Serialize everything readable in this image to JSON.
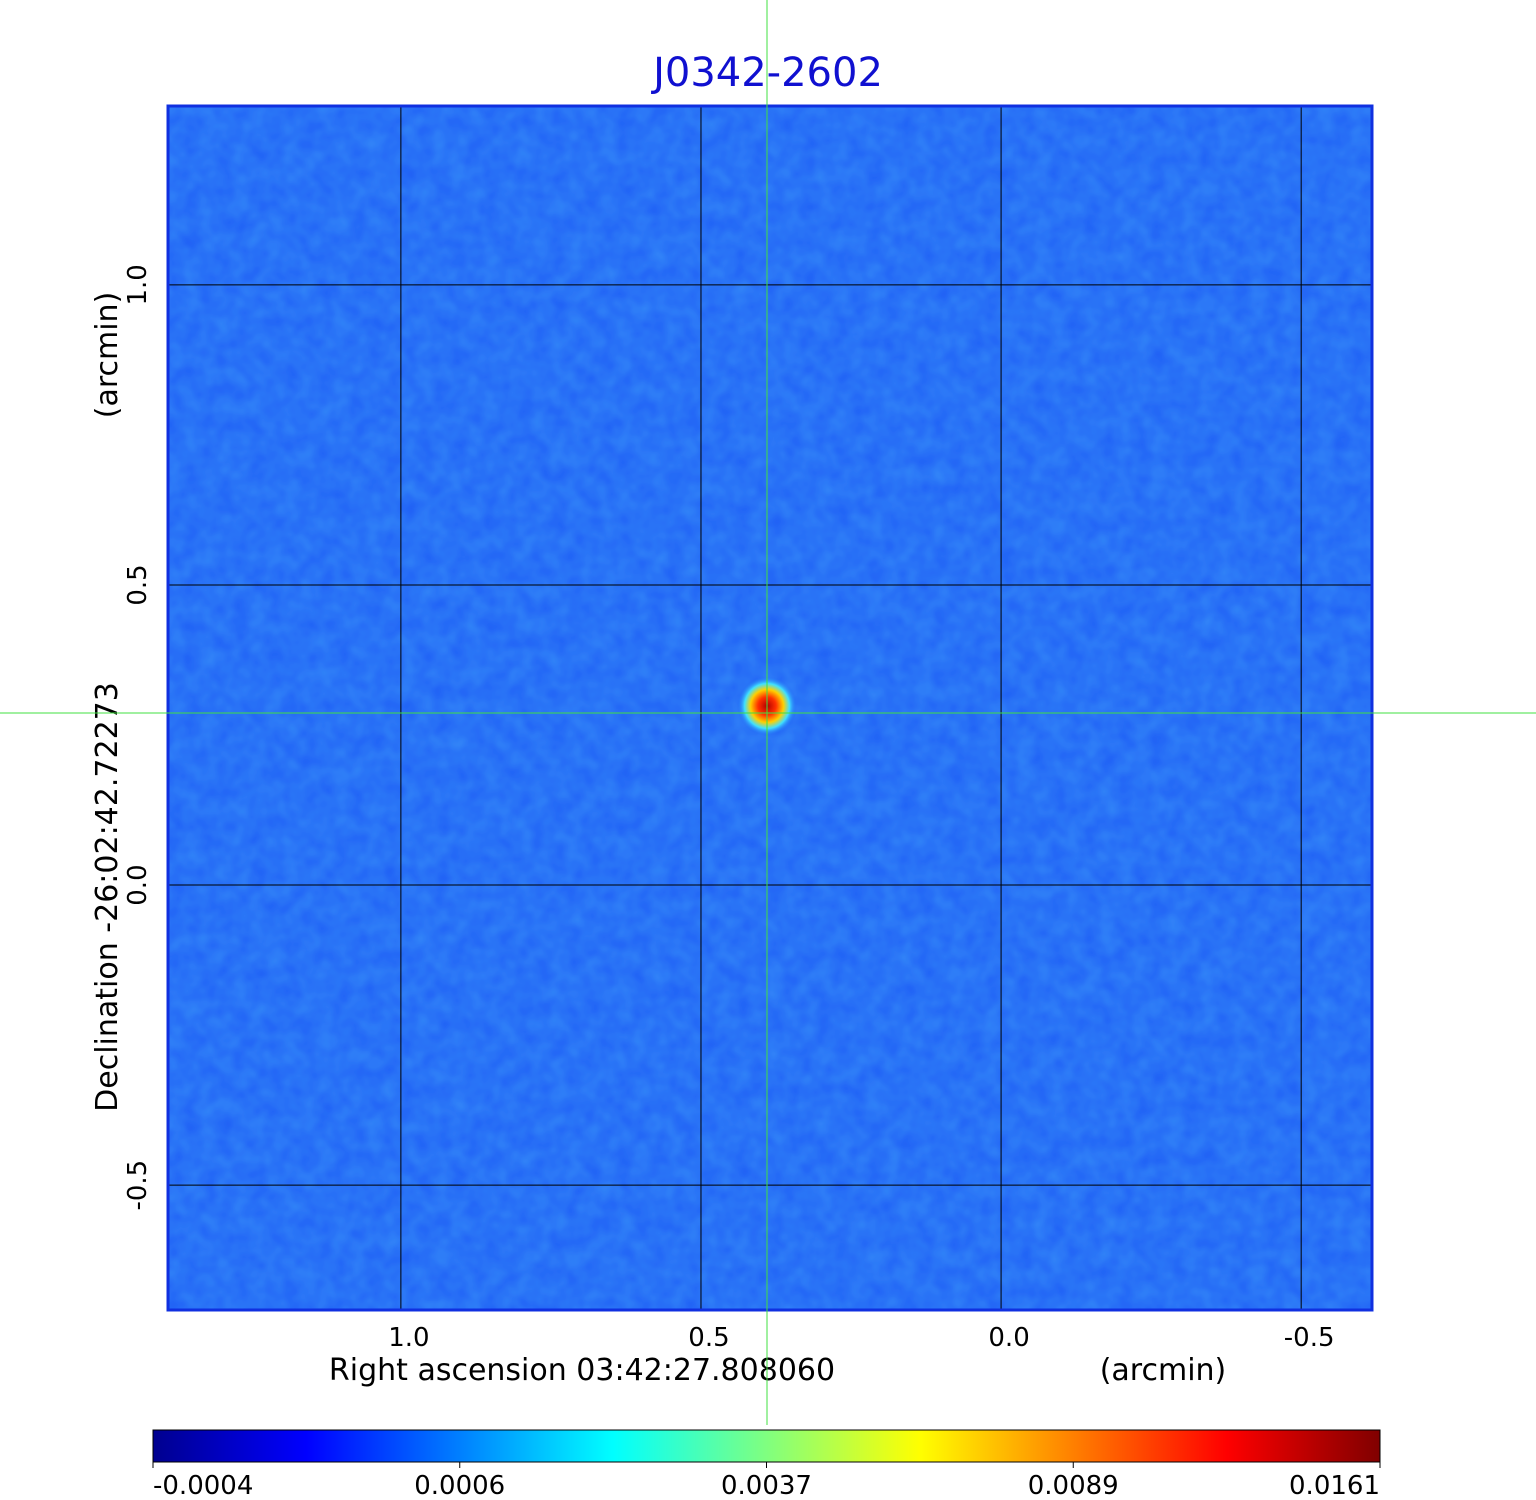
{
  "chart_data": {
    "type": "image",
    "title": "J0342-2602",
    "xlabel": "Right ascension  03:42:27.808060",
    "xunit": "(arcmin)",
    "ylabel": "Declination  -26:02:42.72273",
    "yunit": "(arcmin)",
    "xlim": [
      1.388,
      -0.618
    ],
    "ylim": [
      -0.708,
      1.298
    ],
    "xticks": [
      {
        "value": 1,
        "label": "1.0"
      },
      0.5,
      {
        "value": 0,
        "label": "0.0"
      },
      -0.5
    ],
    "yticks": [
      -0.5,
      {
        "value": 0,
        "label": "0.0"
      },
      0.5,
      {
        "value": 1,
        "label": "1.0"
      }
    ],
    "grid": true,
    "colorbar": {
      "colormap": "jet",
      "ticks": [
        -0.0004,
        0.0006,
        0.0037,
        0.0089,
        0.0161
      ]
    }
  }
}
